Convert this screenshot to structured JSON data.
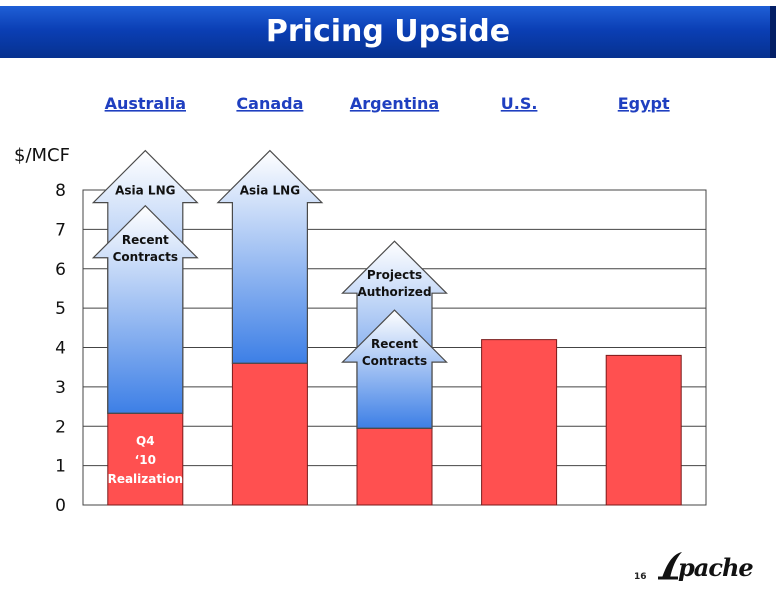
{
  "page": {
    "title": "Pricing Upside",
    "page_number": "16",
    "logo_text": "Apache"
  },
  "colors": {
    "title_bar": "#0b3fb5",
    "bar_fill": "#ff5050",
    "arrow_top": "#ffffff",
    "arrow_bottom": "#3d7fe6",
    "country_label": "#1f3fc0",
    "grid": "#444444"
  },
  "chart_data": {
    "type": "bar",
    "title": "Pricing Upside",
    "ylabel": "$/MCF",
    "xlabel": "",
    "ylim": [
      0,
      8
    ],
    "yticks": [
      0,
      1,
      2,
      3,
      4,
      5,
      6,
      7,
      8
    ],
    "grid": true,
    "categories": [
      "Australia",
      "Canada",
      "Argentina",
      "U.S.",
      "Egypt"
    ],
    "values": [
      2.33,
      3.6,
      1.95,
      4.2,
      3.8
    ],
    "bar_labels": [
      "Q4 ‘10 Realization",
      "",
      "",
      "",
      ""
    ],
    "upside_arrows": [
      {
        "category": "Australia",
        "from": 2.33,
        "to": 9.0,
        "label": "Asia LNG"
      },
      {
        "category": "Australia",
        "from": 2.33,
        "to": 7.6,
        "label": "Recent Contracts"
      },
      {
        "category": "Canada",
        "from": 3.6,
        "to": 9.0,
        "label": "Asia LNG"
      },
      {
        "category": "Argentina",
        "from": 1.95,
        "to": 6.7,
        "label": "Projects Authorized"
      },
      {
        "category": "Argentina",
        "from": 1.95,
        "to": 4.95,
        "label": "Recent Contracts"
      }
    ]
  }
}
